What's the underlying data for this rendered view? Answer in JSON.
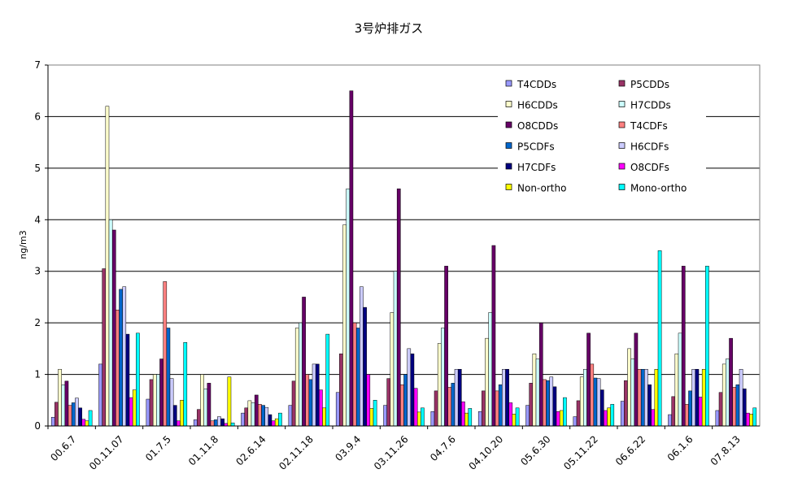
{
  "chart_data": {
    "type": "bar",
    "title": "3号炉排ガス",
    "ylabel": "ng/m3",
    "xlabel": "",
    "ylim": [
      0,
      7
    ],
    "yticks": [
      0,
      1,
      2,
      3,
      4,
      5,
      6,
      7
    ],
    "grid": "horizontal",
    "legend_position": "top-right",
    "categories": [
      "00.6.7",
      "00.11.07",
      "01.7.5",
      "01.11.8",
      "02.6.14",
      "02.11.18",
      "03.9.4",
      "03.11.26",
      "04.7.6",
      "04.10.20",
      "05.6.30",
      "05.11.22",
      "06.6.22",
      "06.1.6",
      "07.8.13"
    ],
    "series": [
      {
        "name": "T4CDDs",
        "color": "#9999FF",
        "values": [
          0.17,
          1.2,
          0.52,
          0.12,
          0.25,
          0.4,
          0.65,
          0.4,
          0.28,
          0.28,
          0.4,
          0.18,
          0.48,
          0.22,
          0.3
        ]
      },
      {
        "name": "P5CDDs",
        "color": "#993366",
        "values": [
          0.46,
          3.05,
          0.9,
          0.32,
          0.35,
          0.87,
          1.4,
          0.92,
          0.68,
          0.68,
          0.83,
          0.49,
          0.88,
          0.57,
          0.65
        ]
      },
      {
        "name": "H6CDDs",
        "color": "#FFFFCC",
        "values": [
          1.1,
          6.2,
          1.0,
          1.0,
          0.49,
          1.9,
          3.9,
          2.2,
          1.6,
          1.7,
          1.4,
          0.95,
          1.5,
          1.4,
          1.2
        ]
      },
      {
        "name": "H7CDDs",
        "color": "#CCFFFF",
        "values": [
          0.8,
          4.0,
          1.0,
          0.72,
          0.45,
          2.0,
          4.6,
          3.0,
          1.9,
          2.2,
          1.3,
          1.1,
          1.3,
          1.8,
          1.3
        ]
      },
      {
        "name": "O8CDDs",
        "color": "#660066",
        "values": [
          0.87,
          3.8,
          1.3,
          0.83,
          0.6,
          2.5,
          6.5,
          4.6,
          3.1,
          3.5,
          2.0,
          1.8,
          1.8,
          3.1,
          1.7
        ]
      },
      {
        "name": "T4CDFs",
        "color": "#FF8080",
        "values": [
          0.4,
          2.25,
          2.8,
          0.1,
          0.42,
          1.0,
          2.0,
          0.8,
          0.75,
          0.68,
          0.9,
          1.2,
          1.1,
          0.42,
          0.75
        ]
      },
      {
        "name": "P5CDFs",
        "color": "#0066CC",
        "values": [
          0.45,
          2.65,
          1.9,
          0.12,
          0.4,
          0.9,
          1.9,
          1.0,
          0.83,
          0.8,
          0.88,
          0.93,
          1.1,
          0.68,
          0.8
        ]
      },
      {
        "name": "H6CDFs",
        "color": "#CCCCFF",
        "values": [
          0.54,
          2.7,
          0.92,
          0.18,
          0.36,
          1.2,
          2.7,
          1.5,
          1.1,
          1.1,
          0.95,
          0.92,
          1.1,
          1.1,
          1.1
        ]
      },
      {
        "name": "H7CDFs",
        "color": "#000080",
        "values": [
          0.35,
          1.78,
          0.4,
          0.14,
          0.22,
          1.2,
          2.3,
          1.4,
          1.1,
          1.1,
          0.76,
          0.7,
          0.8,
          1.1,
          0.72
        ]
      },
      {
        "name": "O8CDFs",
        "color": "#FF00FF",
        "values": [
          0.13,
          0.55,
          0.1,
          0.05,
          0.1,
          0.7,
          1.0,
          0.73,
          0.47,
          0.45,
          0.28,
          0.3,
          0.32,
          0.56,
          0.25
        ]
      },
      {
        "name": "Non-ortho",
        "color": "#FFFF00",
        "values": [
          0.1,
          0.7,
          0.5,
          0.95,
          0.14,
          0.35,
          0.34,
          0.27,
          0.25,
          0.23,
          0.3,
          0.35,
          1.1,
          1.1,
          0.23
        ]
      },
      {
        "name": "Mono-ortho",
        "color": "#00FFFF",
        "values": [
          0.3,
          1.8,
          1.62,
          0.06,
          0.25,
          1.78,
          0.5,
          0.35,
          0.34,
          0.35,
          0.55,
          0.42,
          3.4,
          3.1,
          0.35
        ]
      }
    ]
  }
}
